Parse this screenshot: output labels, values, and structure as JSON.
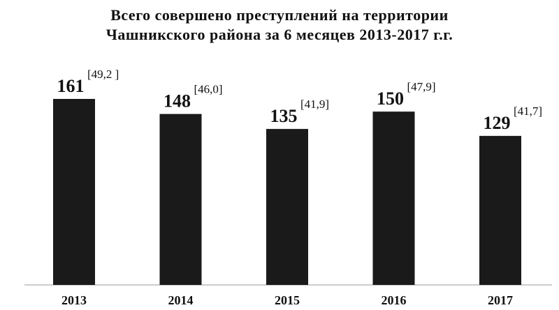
{
  "chart_data": {
    "type": "bar",
    "title_lines": [
      "Всего совершено преступлений на территории",
      "Чашникского района за 6 месяцев 2013-2017 г.г."
    ],
    "categories": [
      "2013",
      "2014",
      "2015",
      "2016",
      "2017"
    ],
    "values": [
      161,
      148,
      135,
      150,
      129
    ],
    "annotations": [
      "[49,2 ]",
      "[46,0]",
      "[41,9]",
      "[47,9]",
      "[41,7]"
    ],
    "xlabel": "",
    "ylabel": "",
    "ylim": [
      0,
      180
    ],
    "grid": false,
    "legend": "none",
    "bar_color": "#1a1a1a"
  }
}
